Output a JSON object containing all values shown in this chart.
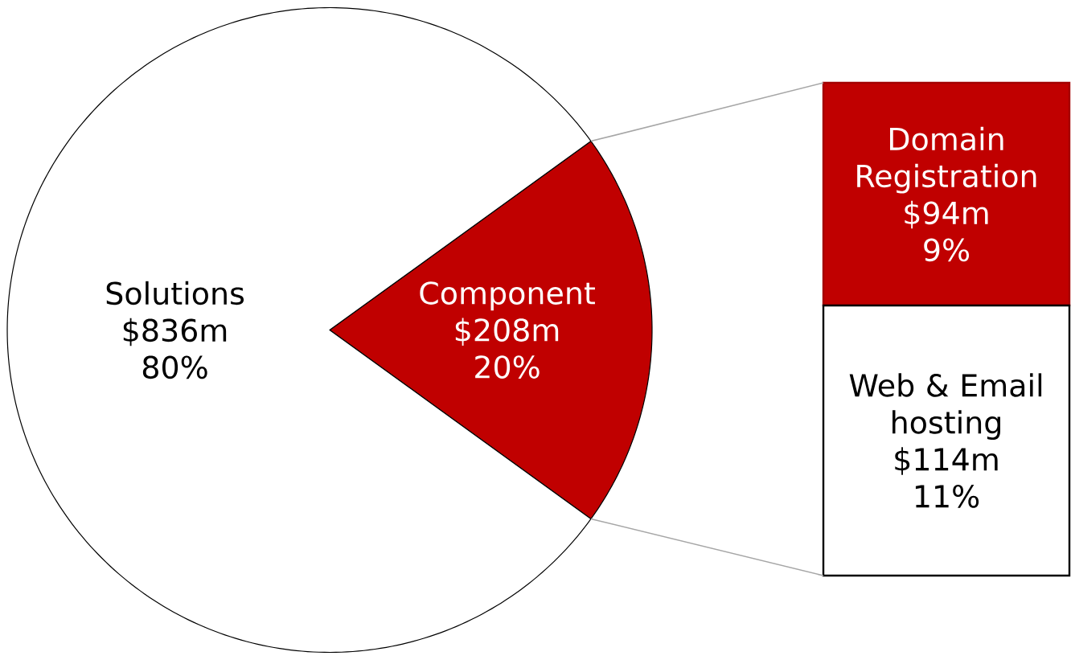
{
  "chart_data": [
    {
      "type": "pie",
      "categories": [
        "Solutions",
        "Component"
      ],
      "values": [
        836,
        208
      ],
      "colors": [
        "#ffffff",
        "#c00000"
      ],
      "value_labels": [
        "$836m",
        "$208m"
      ],
      "annotations": [
        "80%",
        "20%"
      ]
    },
    {
      "type": "bar",
      "stacked": true,
      "categories": [
        null
      ],
      "annotations": [
        "11%",
        "9%"
      ],
      "series": [
        {
          "name": "Web & Email hosting",
          "color": "#ffffff",
          "values": [
            114
          ],
          "value_labels": [
            "$114m"
          ]
        },
        {
          "name": "Domain Registration",
          "color": "#c00000",
          "values": [
            94
          ],
          "value_labels": [
            "$94m"
          ]
        }
      ]
    }
  ]
}
